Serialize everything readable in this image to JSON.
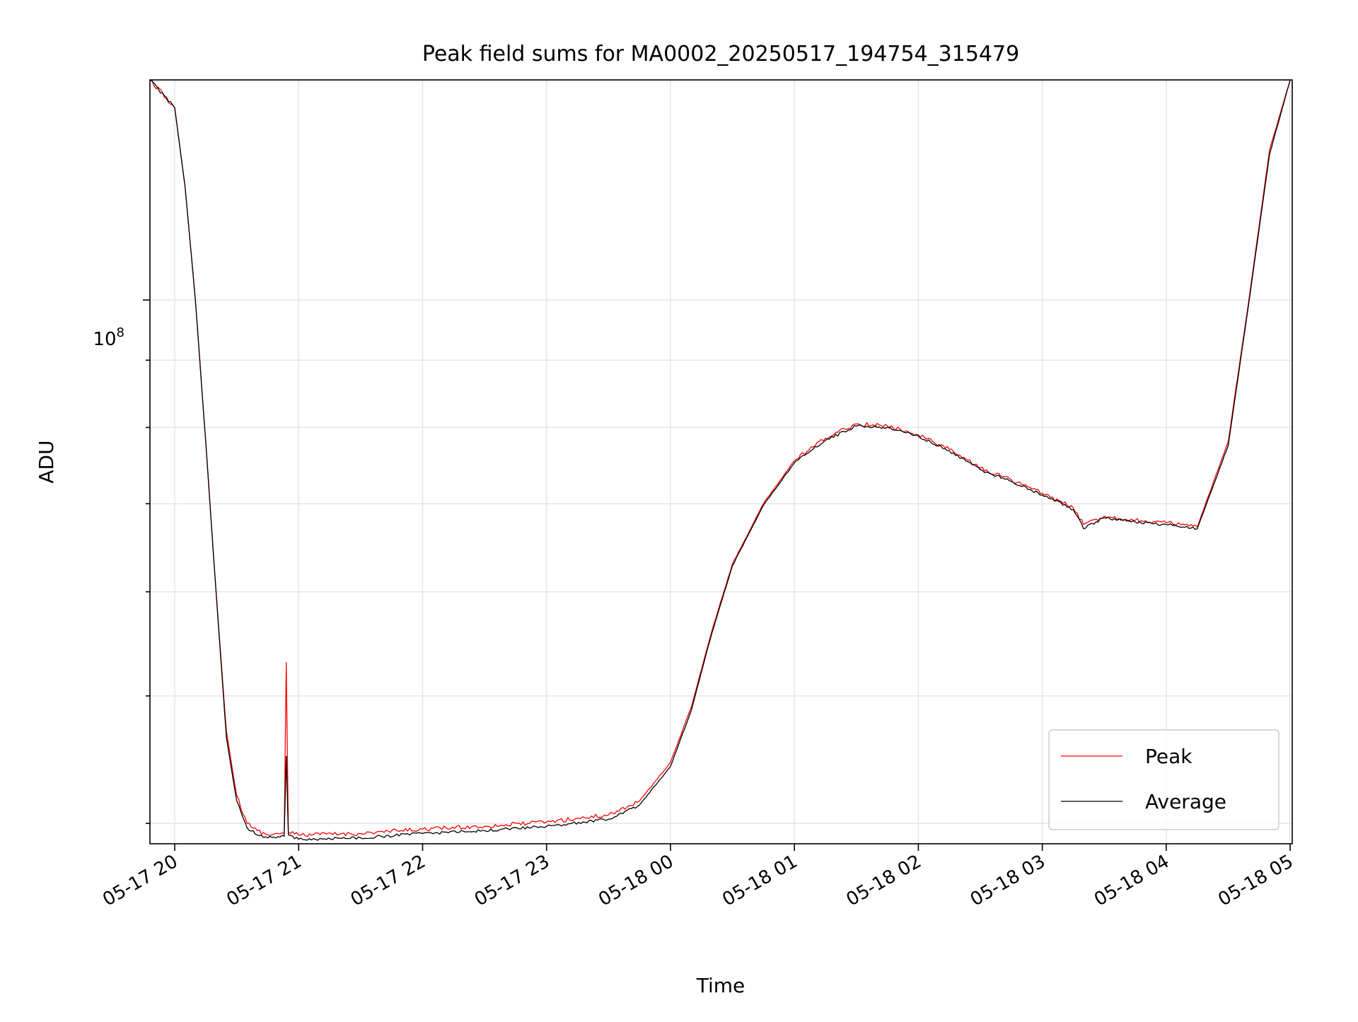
{
  "chart_data": {
    "type": "line",
    "title": "Peak field sums for MA0002_20250517_194754_315479",
    "xlabel": "Time",
    "ylabel": "ADU",
    "y_scale": "log",
    "grid": true,
    "legend_position": "lower right",
    "xlim": [
      "2025-05-17 19:48",
      "2025-05-18 05:01"
    ],
    "ylim": [
      38600000,
      147000000
    ],
    "x_ticks": [
      "05-17 20",
      "05-17 21",
      "05-17 22",
      "05-17 23",
      "05-18 00",
      "05-18 01",
      "05-18 02",
      "05-18 03",
      "05-18 04",
      "05-18 05"
    ],
    "x_tick_values": [
      "2025-05-17 20:00",
      "2025-05-17 21:00",
      "2025-05-17 22:00",
      "2025-05-17 23:00",
      "2025-05-18 00:00",
      "2025-05-18 01:00",
      "2025-05-18 02:00",
      "2025-05-18 03:00",
      "2025-05-18 04:00",
      "2025-05-18 05:00"
    ],
    "y_tick_major": {
      "value": 100000000,
      "base": "10",
      "exponent": "8"
    },
    "y_minor_ticks": [
      40000000,
      50000000,
      60000000,
      70000000,
      80000000,
      90000000,
      200000000
    ],
    "series": [
      {
        "name": "Peak",
        "color": "#ff0000",
        "x": [
          "2025-05-17 19:48",
          "2025-05-17 20:00",
          "2025-05-17 20:05",
          "2025-05-17 20:10",
          "2025-05-17 20:15",
          "2025-05-17 20:20",
          "2025-05-17 20:25",
          "2025-05-17 20:30",
          "2025-05-17 20:35",
          "2025-05-17 20:40",
          "2025-05-17 20:45",
          "2025-05-17 20:50",
          "2025-05-17 20:53",
          "2025-05-17 20:54",
          "2025-05-17 20:55",
          "2025-05-17 21:00",
          "2025-05-17 21:30",
          "2025-05-17 22:00",
          "2025-05-17 22:30",
          "2025-05-17 23:00",
          "2025-05-17 23:30",
          "2025-05-17 23:45",
          "2025-05-18 00:00",
          "2025-05-18 00:10",
          "2025-05-18 00:20",
          "2025-05-18 00:30",
          "2025-05-18 00:45",
          "2025-05-18 01:00",
          "2025-05-18 01:15",
          "2025-05-18 01:30",
          "2025-05-18 01:45",
          "2025-05-18 02:00",
          "2025-05-18 02:15",
          "2025-05-18 02:30",
          "2025-05-18 02:45",
          "2025-05-18 03:00",
          "2025-05-18 03:15",
          "2025-05-18 03:20",
          "2025-05-18 03:30",
          "2025-05-18 03:45",
          "2025-05-18 04:00",
          "2025-05-18 04:15",
          "2025-05-18 04:30",
          "2025-05-18 04:40",
          "2025-05-18 04:50",
          "2025-05-18 05:00"
        ],
        "y": [
          147000000,
          140000000,
          122000000,
          100000000,
          78000000,
          60000000,
          47000000,
          42000000,
          40000000,
          39500000,
          39200000,
          39300000,
          39300000,
          53000000,
          39400000,
          39200000,
          39300000,
          39600000,
          39800000,
          40100000,
          40600000,
          41600000,
          44500000,
          49000000,
          56000000,
          63000000,
          70000000,
          75500000,
          78500000,
          80500000,
          80200000,
          79000000,
          77000000,
          74500000,
          73000000,
          71300000,
          69500000,
          67500000,
          68500000,
          68000000,
          67700000,
          67200000,
          78000000,
          100000000,
          130000000,
          147000000
        ]
      },
      {
        "name": "Average",
        "color": "#000000",
        "x": [
          "2025-05-17 19:48",
          "2025-05-17 20:00",
          "2025-05-17 20:05",
          "2025-05-17 20:10",
          "2025-05-17 20:15",
          "2025-05-17 20:20",
          "2025-05-17 20:25",
          "2025-05-17 20:30",
          "2025-05-17 20:35",
          "2025-05-17 20:40",
          "2025-05-17 20:45",
          "2025-05-17 20:50",
          "2025-05-17 20:53",
          "2025-05-17 20:54",
          "2025-05-17 20:55",
          "2025-05-17 21:00",
          "2025-05-17 21:30",
          "2025-05-17 22:00",
          "2025-05-17 22:30",
          "2025-05-17 23:00",
          "2025-05-17 23:30",
          "2025-05-17 23:45",
          "2025-05-18 00:00",
          "2025-05-18 00:10",
          "2025-05-18 00:20",
          "2025-05-18 00:30",
          "2025-05-18 00:45",
          "2025-05-18 01:00",
          "2025-05-18 01:15",
          "2025-05-18 01:30",
          "2025-05-18 01:45",
          "2025-05-18 02:00",
          "2025-05-18 02:15",
          "2025-05-18 02:30",
          "2025-05-18 02:45",
          "2025-05-18 03:00",
          "2025-05-18 03:15",
          "2025-05-18 03:20",
          "2025-05-18 03:30",
          "2025-05-18 03:45",
          "2025-05-18 04:00",
          "2025-05-18 04:15",
          "2025-05-18 04:30",
          "2025-05-18 04:40",
          "2025-05-18 04:50",
          "2025-05-18 05:00"
        ],
        "y": [
          147000000,
          140000000,
          122000000,
          100000000,
          78000000,
          60000000,
          46500000,
          41600000,
          39700000,
          39200000,
          39000000,
          39100000,
          39100000,
          45000000,
          39200000,
          38900000,
          39000000,
          39300000,
          39500000,
          39800000,
          40300000,
          41300000,
          44200000,
          48700000,
          55800000,
          62800000,
          69800000,
          75200000,
          78200000,
          80200000,
          80000000,
          78800000,
          76800000,
          74300000,
          72800000,
          71100000,
          69300000,
          67000000,
          68300000,
          67800000,
          67500000,
          67000000,
          77500000,
          99500000,
          129000000,
          147000000
        ]
      }
    ]
  }
}
